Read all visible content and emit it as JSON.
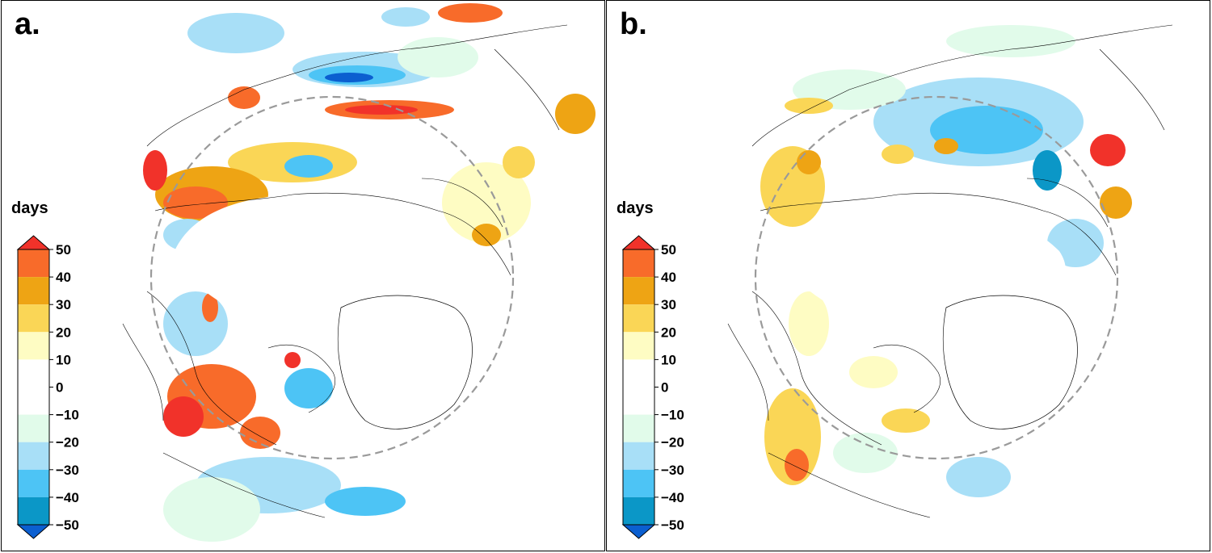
{
  "panels": [
    {
      "label": "a.",
      "legend_title": "days"
    },
    {
      "label": "b.",
      "legend_title": "days"
    }
  ],
  "colorbar": {
    "ticks": [
      "50",
      "40",
      "30",
      "20",
      "10",
      "0",
      "−10",
      "−20",
      "−30",
      "−40",
      "−50"
    ],
    "colors": [
      "#f86b2a",
      "#eea414",
      "#fad656",
      "#fefcc3",
      "#ffffff",
      "#e1fbea",
      "#a8dff7",
      "#4dc4f5",
      "#0b97c7"
    ],
    "over_color": "#f1322a",
    "under_color": "#0b5fd0",
    "tick_values": [
      50,
      40,
      30,
      20,
      10,
      0,
      -10,
      -20,
      -30,
      -40,
      -50
    ]
  }
}
